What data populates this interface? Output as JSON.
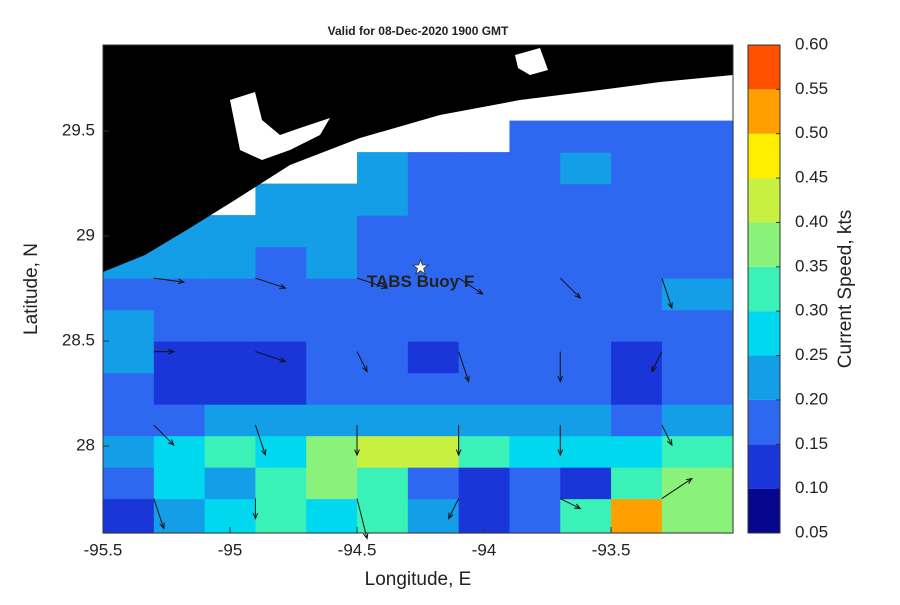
{
  "chart_data": {
    "type": "contour",
    "title": "Valid for 08-Dec-2020 1900 GMT",
    "x_label": "Longitude, E",
    "y_label": "Latitude, N",
    "colorbar_label": "Current Speed, kts",
    "xlim": [
      -95.5,
      -93.02
    ],
    "ylim": [
      27.586,
      29.91
    ],
    "xticks": [
      -95.5,
      -95,
      -94.5,
      -94,
      -93.5
    ],
    "yticks": [
      28,
      28.5,
      29,
      29.5
    ],
    "cticks": [
      0.05,
      {
        "value": 0.1,
        "label": "0.10"
      },
      0.15,
      {
        "value": 0.2,
        "label": "0.20"
      },
      0.25,
      {
        "value": 0.3,
        "label": "0.30"
      },
      0.35,
      {
        "value": 0.4,
        "label": "0.40"
      },
      0.45,
      {
        "value": 0.5,
        "label": "0.50"
      },
      0.55,
      {
        "value": 0.6,
        "label": "0.60"
      }
    ],
    "colors": [
      "#05088f",
      "#1a35d8",
      "#2f68f0",
      "#159ee8",
      "#00d8f0",
      "#3af2b8",
      "#8af27a",
      "#c8f040",
      "#ffee00",
      "#ffa000",
      "#ff5000",
      "#ff0000"
    ],
    "grid": {
      "lon": [
        -95.5,
        -95.3,
        -95.1,
        -94.9,
        -94.7,
        -94.5,
        -94.3,
        -94.1,
        -93.9,
        -93.7,
        -93.5,
        -93.3,
        -93.02
      ],
      "lat": [
        27.586,
        27.75,
        27.9,
        28.05,
        28.2,
        28.35,
        28.5,
        28.65,
        28.8,
        28.95,
        29.1,
        29.25,
        29.4,
        29.55
      ],
      "speed": [
        [
          0.1,
          0.2,
          0.25,
          0.3,
          0.25,
          0.3,
          0.2,
          0.1,
          0.15,
          0.3,
          0.5,
          0.35
        ],
        [
          0.15,
          0.25,
          0.2,
          0.3,
          0.35,
          0.3,
          0.15,
          0.1,
          0.15,
          0.1,
          0.3,
          0.35
        ],
        [
          0.2,
          0.25,
          0.3,
          0.25,
          0.35,
          0.4,
          0.4,
          0.3,
          0.25,
          0.25,
          0.25,
          0.3
        ],
        [
          0.15,
          0.15,
          0.2,
          0.2,
          0.2,
          0.2,
          0.2,
          0.2,
          0.2,
          0.2,
          0.15,
          0.2
        ],
        [
          0.15,
          0.1,
          0.1,
          0.1,
          0.15,
          0.15,
          0.15,
          0.15,
          0.15,
          0.15,
          0.1,
          0.15
        ],
        [
          0.2,
          0.1,
          0.1,
          0.1,
          0.15,
          0.15,
          0.1,
          0.15,
          0.15,
          0.15,
          0.1,
          0.15
        ],
        [
          0.2,
          0.15,
          0.15,
          0.15,
          0.15,
          0.15,
          0.15,
          0.15,
          0.15,
          0.15,
          0.15,
          0.15
        ],
        [
          0.15,
          0.15,
          0.15,
          0.15,
          0.15,
          0.15,
          0.15,
          0.15,
          0.15,
          0.15,
          0.15,
          0.2
        ],
        [
          0.2,
          0.2,
          0.2,
          0.15,
          0.2,
          0.15,
          0.15,
          0.15,
          0.15,
          0.15,
          0.15,
          0.15
        ],
        [
          null,
          0.2,
          0.2,
          0.2,
          0.2,
          0.15,
          0.15,
          0.15,
          0.15,
          0.15,
          0.15,
          0.15
        ],
        [
          null,
          null,
          null,
          0.2,
          0.2,
          0.2,
          0.15,
          0.15,
          0.15,
          0.15,
          0.15,
          0.15
        ],
        [
          null,
          null,
          null,
          null,
          null,
          0.2,
          0.15,
          0.15,
          0.15,
          0.2,
          0.15,
          0.15
        ],
        [
          null,
          null,
          null,
          null,
          null,
          null,
          null,
          null,
          0.15,
          0.15,
          0.15,
          0.15
        ]
      ]
    },
    "vectors": [
      {
        "lon": -95.3,
        "lat": 27.75,
        "u": 0.05,
        "v": -0.15
      },
      {
        "lon": -94.9,
        "lat": 27.75,
        "u": 0,
        "v": -0.1
      },
      {
        "lon": -94.5,
        "lat": 27.75,
        "u": 0.05,
        "v": -0.2
      },
      {
        "lon": -94.1,
        "lat": 27.75,
        "u": -0.05,
        "v": -0.1
      },
      {
        "lon": -93.7,
        "lat": 27.75,
        "u": 0.1,
        "v": -0.05
      },
      {
        "lon": -93.3,
        "lat": 27.75,
        "u": 0.15,
        "v": 0.1
      },
      {
        "lon": -95.3,
        "lat": 28.1,
        "u": 0.1,
        "v": -0.1
      },
      {
        "lon": -94.9,
        "lat": 28.1,
        "u": 0.05,
        "v": -0.15
      },
      {
        "lon": -94.5,
        "lat": 28.1,
        "u": 0,
        "v": -0.15
      },
      {
        "lon": -94.1,
        "lat": 28.1,
        "u": 0,
        "v": -0.15
      },
      {
        "lon": -93.7,
        "lat": 28.1,
        "u": 0,
        "v": -0.15
      },
      {
        "lon": -93.3,
        "lat": 28.1,
        "u": 0.05,
        "v": -0.1
      },
      {
        "lon": -95.3,
        "lat": 28.45,
        "u": 0.1,
        "v": 0
      },
      {
        "lon": -94.9,
        "lat": 28.45,
        "u": 0.15,
        "v": -0.05
      },
      {
        "lon": -94.5,
        "lat": 28.45,
        "u": 0.05,
        "v": -0.1
      },
      {
        "lon": -94.1,
        "lat": 28.45,
        "u": 0.05,
        "v": -0.15
      },
      {
        "lon": -93.7,
        "lat": 28.45,
        "u": 0,
        "v": -0.15
      },
      {
        "lon": -93.3,
        "lat": 28.45,
        "u": -0.05,
        "v": -0.1
      },
      {
        "lon": -95.3,
        "lat": 28.8,
        "u": 0.15,
        "v": -0.02
      },
      {
        "lon": -94.9,
        "lat": 28.8,
        "u": 0.15,
        "v": -0.05
      },
      {
        "lon": -94.5,
        "lat": 28.8,
        "u": 0.15,
        "v": -0.05
      },
      {
        "lon": -94.1,
        "lat": 28.8,
        "u": 0.12,
        "v": -0.08
      },
      {
        "lon": -93.7,
        "lat": 28.8,
        "u": 0.1,
        "v": -0.1
      },
      {
        "lon": -93.3,
        "lat": 28.8,
        "u": 0.05,
        "v": -0.15
      }
    ],
    "annotations": [
      {
        "text": "TABS Buoy F",
        "lon": -94.25,
        "lat": 28.85
      }
    ]
  }
}
